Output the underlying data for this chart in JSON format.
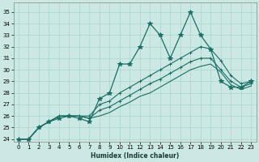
{
  "xlabel": "Humidex (Indice chaleur)",
  "background_color": "#cce8e4",
  "grid_color": "#aad4ce",
  "line_color": "#1a6e64",
  "xlim": [
    -0.5,
    23.5
  ],
  "ylim": [
    23.8,
    35.8
  ],
  "xticks": [
    0,
    1,
    2,
    3,
    4,
    5,
    6,
    7,
    8,
    9,
    10,
    11,
    12,
    13,
    14,
    15,
    16,
    17,
    18,
    19,
    20,
    21,
    22,
    23
  ],
  "yticks": [
    24,
    25,
    26,
    27,
    28,
    29,
    30,
    31,
    32,
    33,
    34,
    35
  ],
  "series": [
    {
      "x": [
        0,
        1,
        2,
        3,
        4,
        5,
        6,
        7,
        8,
        9,
        10,
        11,
        12,
        13,
        14,
        15,
        16,
        17,
        18,
        19,
        20,
        21,
        22,
        23
      ],
      "y": [
        24,
        24,
        25,
        25.5,
        25.8,
        26.0,
        25.8,
        25.5,
        27.5,
        28.0,
        30.5,
        30.5,
        32.0,
        34.0,
        33.0,
        31.0,
        33.0,
        35.0,
        33.0,
        31.8,
        29.0,
        28.5,
        28.5,
        29.0
      ],
      "marker": "*",
      "markersize": 4,
      "lw": 0.9
    },
    {
      "x": [
        0,
        1,
        2,
        3,
        4,
        5,
        6,
        7,
        8,
        9,
        10,
        11,
        12,
        13,
        14,
        15,
        16,
        17,
        18,
        19,
        20,
        21,
        22,
        23
      ],
      "y": [
        24,
        24,
        25,
        25.5,
        26.0,
        26.0,
        26.0,
        26.0,
        27.0,
        27.3,
        28.0,
        28.5,
        29.0,
        29.5,
        30.0,
        30.5,
        31.0,
        31.5,
        32.0,
        31.8,
        30.8,
        29.5,
        28.8,
        29.0
      ],
      "marker": "+",
      "markersize": 3,
      "lw": 0.8
    },
    {
      "x": [
        0,
        1,
        2,
        3,
        4,
        5,
        6,
        7,
        8,
        9,
        10,
        11,
        12,
        13,
        14,
        15,
        16,
        17,
        18,
        19,
        20,
        21,
        22,
        23
      ],
      "y": [
        24,
        24,
        25,
        25.5,
        26.0,
        26.0,
        26.0,
        25.8,
        26.5,
        26.8,
        27.3,
        27.8,
        28.3,
        28.8,
        29.2,
        29.7,
        30.2,
        30.7,
        31.0,
        31.0,
        30.0,
        29.0,
        28.5,
        28.8
      ],
      "marker": "+",
      "markersize": 3,
      "lw": 0.8
    },
    {
      "x": [
        0,
        1,
        2,
        3,
        4,
        5,
        6,
        7,
        8,
        9,
        10,
        11,
        12,
        13,
        14,
        15,
        16,
        17,
        18,
        19,
        20,
        21,
        22,
        23
      ],
      "y": [
        24,
        24,
        25,
        25.5,
        26.0,
        26.0,
        26.0,
        25.8,
        26.0,
        26.3,
        26.8,
        27.2,
        27.7,
        28.0,
        28.5,
        29.0,
        29.5,
        30.0,
        30.3,
        30.5,
        29.8,
        28.7,
        28.3,
        28.6
      ],
      "marker": "None",
      "markersize": 0,
      "lw": 0.8
    }
  ]
}
